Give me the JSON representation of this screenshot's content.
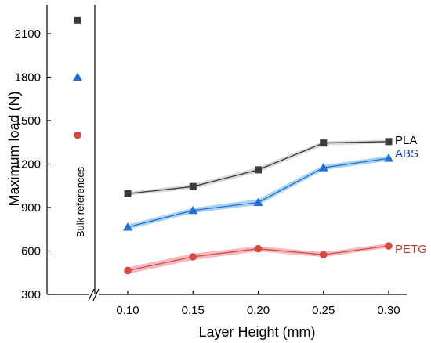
{
  "chart_data": {
    "type": "line",
    "xlabel": "Layer Height (mm)",
    "ylabel": "Maximum load (N)",
    "categories": [
      "0.10",
      "0.15",
      "0.20",
      "0.25",
      "0.30"
    ],
    "x": [
      0.1,
      0.15,
      0.2,
      0.25,
      0.3
    ],
    "ylim": [
      300,
      2250
    ],
    "yticks": [
      300,
      600,
      900,
      1200,
      1500,
      1800,
      2100
    ],
    "grid": false,
    "legend": "series labels at right end of lines",
    "bulk_label": "Bulk references",
    "series": [
      {
        "name": "PLA",
        "marker": "square",
        "color": "#3a3a3a",
        "band_color": "#d9d9d9",
        "values": [
          995,
          1045,
          1160,
          1345,
          1355
        ],
        "band_low": [
          985,
          1030,
          1145,
          1330,
          1345
        ],
        "band_high": [
          1005,
          1060,
          1175,
          1355,
          1365
        ],
        "bulk_reference": 2190
      },
      {
        "name": "ABS",
        "marker": "triangle",
        "color": "#1f6fd6",
        "band_color": "#a9d3f2",
        "values": [
          765,
          880,
          935,
          1175,
          1240
        ],
        "band_low": [
          750,
          865,
          920,
          1160,
          1225
        ],
        "band_high": [
          780,
          895,
          955,
          1190,
          1255
        ],
        "bulk_reference": 1800
      },
      {
        "name": "PETG",
        "marker": "circle",
        "color": "#d9473f",
        "band_color": "#f5b9c0",
        "values": [
          465,
          560,
          615,
          575,
          635
        ],
        "band_low": [
          445,
          540,
          600,
          560,
          625
        ],
        "band_high": [
          485,
          580,
          630,
          590,
          650
        ],
        "bulk_reference": 1400
      }
    ]
  }
}
